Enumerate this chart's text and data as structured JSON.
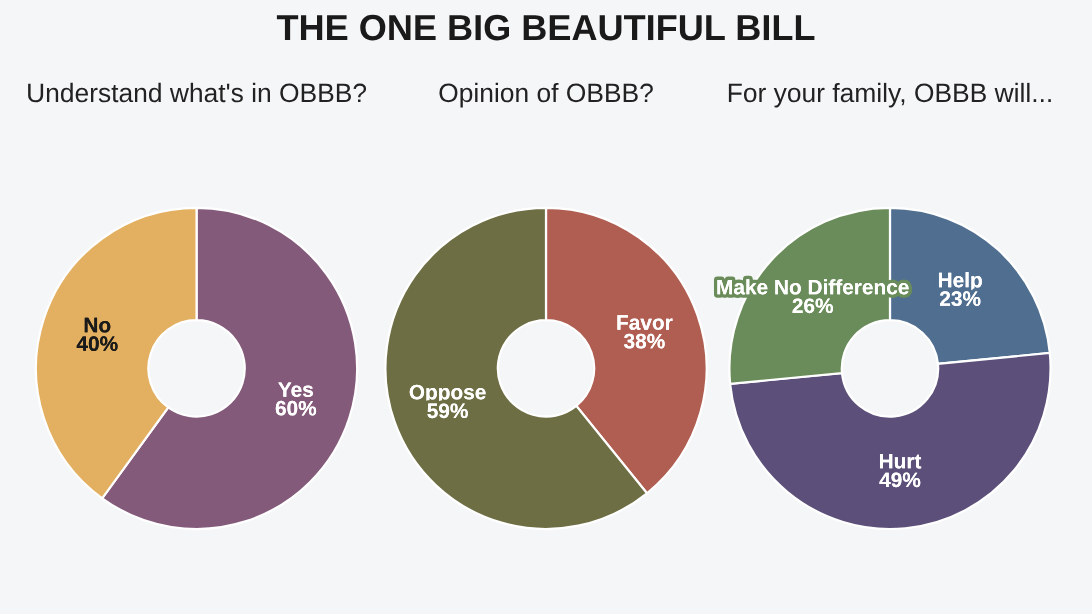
{
  "chart_data": [
    {
      "type": "donut",
      "title": "Understand what's in OBBB?",
      "annotations": [
        "THE ONE BIG BEAUTIFUL BILL"
      ],
      "categories": [
        "Yes",
        "No"
      ],
      "values": [
        60,
        40
      ],
      "value_labels": [
        "60%",
        "40%"
      ],
      "colors": [
        "#845a7a",
        "#e2b060"
      ]
    },
    {
      "type": "donut",
      "title": "Opinion of OBBB?",
      "categories": [
        "Favor",
        "Oppose"
      ],
      "values": [
        38,
        59
      ],
      "value_labels": [
        "38%",
        "59%"
      ],
      "colors": [
        "#b05e52",
        "#6e6e45"
      ]
    },
    {
      "type": "donut",
      "title": "For your family, OBBB will...",
      "categories": [
        "Help",
        "Hurt",
        "Make No Difference"
      ],
      "values": [
        23,
        49,
        26
      ],
      "value_labels": [
        "23%",
        "49%",
        "26%"
      ],
      "colors": [
        "#4f6e90",
        "#5c507a",
        "#6a8c5a"
      ]
    }
  ]
}
